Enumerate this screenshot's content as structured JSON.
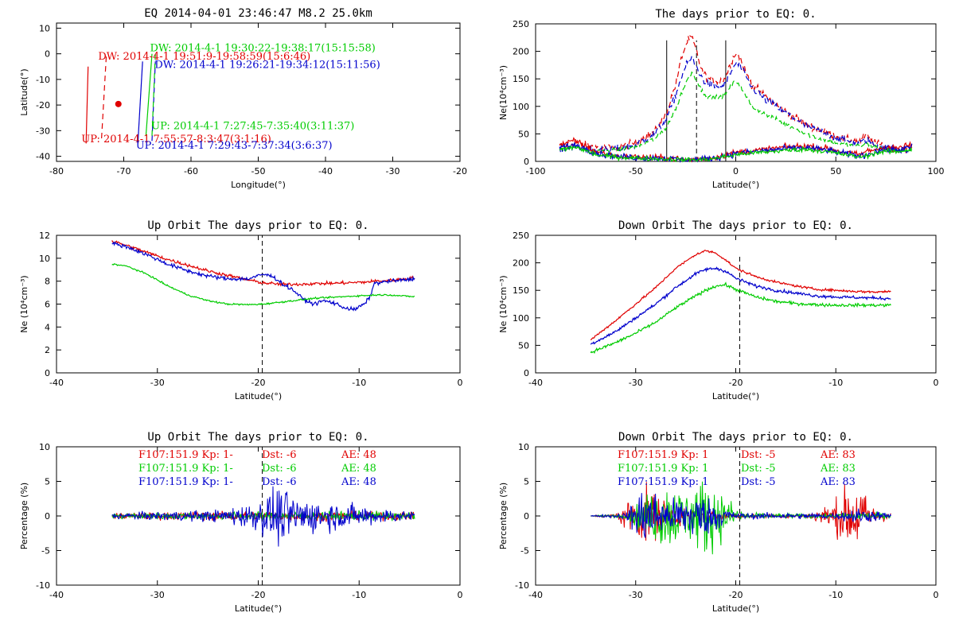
{
  "colors": {
    "red": "#e00000",
    "green": "#00cc00",
    "blue": "#0000cc",
    "black": "#000000"
  },
  "chart_data": [
    {
      "id": "map",
      "type": "line",
      "title": "EQ 2014-04-01 23:46:47 M8.2 25.0km",
      "xlabel": "Longitude(°)",
      "ylabel": "Latitude(°)",
      "xlim": [
        -80,
        -20
      ],
      "ylim": [
        -42,
        12
      ],
      "xticks": [
        -80,
        -70,
        -60,
        -50,
        -40,
        -30,
        -20
      ],
      "yticks": [
        -40,
        -30,
        -20,
        -10,
        0,
        10
      ],
      "epicenter": {
        "x": -70.8,
        "y": -19.6,
        "color": "red"
      },
      "tracks": [
        {
          "color": "red",
          "dash": false,
          "x": [
            -75.6,
            -75.3
          ],
          "y": [
            -35,
            -5
          ]
        },
        {
          "color": "red",
          "dash": true,
          "x": [
            -73.3,
            -72.6
          ],
          "y": [
            -33,
            -1
          ]
        },
        {
          "color": "blue",
          "dash": false,
          "x": [
            -67.9,
            -67.2
          ],
          "y": [
            -35,
            -3
          ]
        },
        {
          "color": "green",
          "dash": false,
          "x": [
            -66.7,
            -65.8
          ],
          "y": [
            -32,
            0
          ]
        },
        {
          "color": "blue",
          "dash": true,
          "x": [
            -65.8,
            -65.3
          ],
          "y": [
            -34,
            -3
          ]
        },
        {
          "color": "green",
          "dash": true,
          "x": [
            -65.8,
            -65.3
          ],
          "y": [
            -32,
            0
          ]
        }
      ],
      "annotations": [
        {
          "text": "DW: 2014-4-1 19:30:22-19:38:17(15:15:58)",
          "color": "green",
          "x": -66.1,
          "y": 1.0
        },
        {
          "text": "DW: 2014-4-1 19:51:9-19:58:59(15:6:46)",
          "color": "red",
          "x": -73.8,
          "y": -2.2
        },
        {
          "text": "DW: 2014-4-1 19:26:21-19:34:12(15:11:56)",
          "color": "blue",
          "x": -65.4,
          "y": -5.6
        },
        {
          "text": "UP: 2014-4-1 7:27:45-7:35:40(3:11:37)",
          "color": "green",
          "x": -65.9,
          "y": -29.5
        },
        {
          "text": "UP: 2014-4-1 7:55:57-8:3:47(3:1:16)",
          "color": "red",
          "x": -76.3,
          "y": -34.6
        },
        {
          "text": "UP: 2014-4-1 7:29:43-7:37:34(3:6:37)",
          "color": "blue",
          "x": -68.2,
          "y": -37.0
        }
      ]
    },
    {
      "id": "ne-full",
      "type": "line",
      "title": "The days prior to EQ:   0.",
      "xlabel": "Latitude(°)",
      "ylabel": "Ne(10⁴cm⁻³)",
      "xlim": [
        -100,
        100
      ],
      "ylim": [
        0,
        250
      ],
      "xticks": [
        -100,
        -50,
        0,
        50,
        100
      ],
      "yticks": [
        0,
        50,
        100,
        150,
        200,
        250
      ],
      "vlines": [
        {
          "x": -34.5,
          "dash": false,
          "y2": 220
        },
        {
          "x": -19.6,
          "dash": true,
          "y2": 220
        },
        {
          "x": -5,
          "dash": false,
          "y2": 220
        }
      ],
      "x": [
        -88,
        -80,
        -70,
        -60,
        -50,
        -40,
        -35,
        -30,
        -27,
        -24,
        -22,
        -20,
        -17,
        -14,
        -11,
        -8,
        -5,
        -3,
        0,
        2,
        4,
        8,
        15,
        25,
        35,
        45,
        55,
        62,
        65,
        70,
        75,
        80,
        88
      ],
      "series": [
        {
          "color": "red",
          "dash": true,
          "noise": 5,
          "values": [
            28,
            34,
            25,
            24,
            34,
            56,
            85,
            140,
            190,
            220,
            225,
            205,
            165,
            150,
            148,
            146,
            152,
            175,
            198,
            190,
            170,
            140,
            118,
            90,
            68,
            52,
            40,
            36,
            48,
            32,
            28,
            22,
            25
          ]
        },
        {
          "color": "blue",
          "dash": true,
          "noise": 5,
          "values": [
            22,
            26,
            20,
            22,
            30,
            52,
            75,
            120,
            155,
            180,
            188,
            175,
            152,
            140,
            138,
            134,
            140,
            158,
            178,
            175,
            160,
            135,
            112,
            88,
            65,
            50,
            38,
            32,
            40,
            28,
            25,
            20,
            22
          ]
        },
        {
          "color": "green",
          "dash": true,
          "noise": 3,
          "values": [
            20,
            26,
            18,
            20,
            26,
            42,
            60,
            95,
            125,
            150,
            162,
            152,
            128,
            118,
            116,
            116,
            122,
            135,
            146,
            140,
            125,
            100,
            85,
            68,
            50,
            38,
            30,
            28,
            32,
            26,
            22,
            20,
            22
          ]
        },
        {
          "color": "red",
          "dash": false,
          "noise": 4,
          "values": [
            30,
            38,
            18,
            10,
            8,
            7,
            6,
            5,
            4,
            3,
            3,
            4,
            5,
            6,
            7,
            9,
            12,
            14,
            16,
            17,
            18,
            19,
            22,
            26,
            28,
            24,
            16,
            12,
            18,
            22,
            26,
            24,
            30
          ]
        },
        {
          "color": "blue",
          "dash": false,
          "noise": 4,
          "values": [
            25,
            30,
            15,
            9,
            7,
            6,
            5,
            4,
            3,
            3,
            3,
            3,
            4,
            5,
            6,
            8,
            10,
            12,
            14,
            15,
            16,
            17,
            20,
            23,
            25,
            21,
            14,
            10,
            12,
            18,
            22,
            20,
            26
          ]
        },
        {
          "color": "green",
          "dash": false,
          "noise": 3,
          "values": [
            22,
            26,
            12,
            8,
            6,
            5,
            4,
            4,
            3,
            3,
            3,
            3,
            3,
            4,
            5,
            7,
            9,
            10,
            12,
            13,
            14,
            15,
            17,
            20,
            22,
            18,
            12,
            8,
            10,
            15,
            18,
            17,
            22
          ]
        }
      ]
    },
    {
      "id": "up-orbit",
      "type": "line",
      "title": "Up Orbit The days prior to EQ:   0.",
      "xlabel": "Latitude(°)",
      "ylabel": "Ne (10⁴cm⁻³)",
      "xlim": [
        -40,
        0
      ],
      "ylim": [
        0,
        12
      ],
      "xticks": [
        -40,
        -30,
        -20,
        -10,
        0
      ],
      "yticks": [
        0,
        2,
        4,
        6,
        8,
        10,
        12
      ],
      "vlines": [
        {
          "x": -19.6,
          "dash": true,
          "y2": 12
        }
      ],
      "x": [
        -34.5,
        -33,
        -31,
        -29,
        -27,
        -25,
        -23,
        -21,
        -19.5,
        -18.5,
        -17.5,
        -16.5,
        -15.5,
        -14.5,
        -13.5,
        -12.5,
        -11.5,
        -10.5,
        -9.5,
        -9,
        -8.5,
        -7,
        -5.5,
        -4.5
      ],
      "series": [
        {
          "color": "red",
          "noise": 0.1,
          "values": [
            11.5,
            11.1,
            10.5,
            9.9,
            9.4,
            8.9,
            8.5,
            8.1,
            7.85,
            7.78,
            7.72,
            7.72,
            7.75,
            7.78,
            7.8,
            7.82,
            7.85,
            7.88,
            7.92,
            7.95,
            8.0,
            8.05,
            8.2,
            8.3
          ]
        },
        {
          "color": "blue",
          "noise": 0.12,
          "values": [
            11.3,
            11.0,
            10.3,
            9.5,
            8.9,
            8.45,
            8.2,
            8.2,
            8.6,
            8.4,
            7.7,
            7.2,
            6.4,
            6.0,
            6.3,
            6.1,
            5.7,
            5.5,
            6.0,
            6.5,
            7.8,
            8.0,
            8.1,
            8.2
          ]
        },
        {
          "color": "green",
          "noise": 0.05,
          "values": [
            9.5,
            9.3,
            8.6,
            7.6,
            6.8,
            6.3,
            6.0,
            5.95,
            6.0,
            6.1,
            6.2,
            6.3,
            6.4,
            6.5,
            6.55,
            6.6,
            6.65,
            6.7,
            6.75,
            6.75,
            6.8,
            6.8,
            6.7,
            6.65
          ]
        }
      ]
    },
    {
      "id": "down-orbit",
      "type": "line",
      "title": "Down Orbit The days prior to EQ:   0.",
      "xlabel": "Latitude(°)",
      "ylabel": "Ne (10⁴cm⁻³)",
      "xlim": [
        -40,
        0
      ],
      "ylim": [
        0,
        250
      ],
      "xticks": [
        -40,
        -30,
        -20,
        -10,
        0
      ],
      "yticks": [
        0,
        50,
        100,
        150,
        200,
        250
      ],
      "vlines": [
        {
          "x": -19.6,
          "dash": true,
          "y2": 215
        }
      ],
      "x": [
        -34.5,
        -32,
        -30,
        -28,
        -26,
        -24,
        -23,
        -22,
        -21,
        -20,
        -18,
        -16,
        -14,
        -12,
        -10,
        -8,
        -6,
        -4.5
      ],
      "series": [
        {
          "color": "red",
          "noise": 1.5,
          "values": [
            60,
            95,
            125,
            155,
            190,
            215,
            222,
            218,
            205,
            190,
            175,
            165,
            158,
            152,
            150,
            148,
            147,
            148
          ]
        },
        {
          "color": "blue",
          "noise": 2,
          "values": [
            52,
            75,
            100,
            125,
            155,
            180,
            188,
            190,
            185,
            172,
            158,
            150,
            145,
            140,
            138,
            137,
            136,
            135
          ]
        },
        {
          "color": "green",
          "noise": 2,
          "values": [
            37,
            55,
            72,
            92,
            118,
            140,
            150,
            158,
            160,
            152,
            138,
            130,
            126,
            124,
            123,
            123,
            123,
            123
          ]
        }
      ]
    },
    {
      "id": "up-percentage",
      "type": "line",
      "title": "Up Orbit The days prior to EQ:   0.",
      "xlabel": "Latitude(°)",
      "ylabel": "Percentage (%)",
      "xlim": [
        -40,
        0
      ],
      "ylim": [
        -10,
        10
      ],
      "xticks": [
        -40,
        -30,
        -20,
        -10,
        0
      ],
      "yticks": [
        -10,
        -5,
        0,
        5,
        10
      ],
      "vlines": [
        {
          "x": -19.6,
          "dash": true,
          "y2": 10
        }
      ],
      "noise_range": [
        -34.5,
        -4.5
      ],
      "series": [
        {
          "color": "red",
          "amps": [
            [
              -34.5,
              0.3
            ],
            [
              -20,
              0.5
            ],
            [
              -4.5,
              0.4
            ]
          ]
        },
        {
          "color": "green",
          "amps": [
            [
              -34.5,
              0.3
            ],
            [
              -20,
              0.4
            ],
            [
              -4.5,
              0.5
            ]
          ]
        },
        {
          "color": "blue",
          "amps": [
            [
              -34.5,
              0.3
            ],
            [
              -24,
              0.6
            ],
            [
              -20,
              1.5
            ],
            [
              -18,
              3.0
            ],
            [
              -16.5,
              2.0
            ],
            [
              -13,
              1.5
            ],
            [
              -11,
              1.2
            ],
            [
              -8,
              0.8
            ],
            [
              -4.5,
              0.4
            ]
          ]
        }
      ],
      "legend": [
        {
          "color": "red",
          "f107": "F107:151.9 Kp: 1-",
          "dst": "Dst: -6",
          "ae": "AE: 48"
        },
        {
          "color": "green",
          "f107": "F107:151.9 Kp: 1-",
          "dst": "Dst: -6",
          "ae": "AE: 48"
        },
        {
          "color": "blue",
          "f107": "F107:151.9 Kp: 1-",
          "dst": "Dst: -6",
          "ae": "AE: 48"
        }
      ]
    },
    {
      "id": "down-percentage",
      "type": "line",
      "title": "Down Orbit The days prior to EQ:   0.",
      "xlabel": "Latitude(°)",
      "ylabel": "Percentage (%)",
      "xlim": [
        -40,
        0
      ],
      "ylim": [
        -10,
        10
      ],
      "xticks": [
        -40,
        -30,
        -20,
        -10,
        0
      ],
      "yticks": [
        -10,
        -5,
        0,
        5,
        10
      ],
      "vlines": [
        {
          "x": -19.6,
          "dash": true,
          "y2": 10
        }
      ],
      "noise_range": [
        -34.5,
        -4.5
      ],
      "series": [
        {
          "color": "red",
          "amps": [
            [
              -34.5,
              0.05
            ],
            [
              -32,
              0.2
            ],
            [
              -31,
              1.5
            ],
            [
              -29,
              3.0
            ],
            [
              -27,
              1.5
            ],
            [
              -25,
              0.8
            ],
            [
              -22,
              0.4
            ],
            [
              -19,
              0.2
            ],
            [
              -13,
              0.2
            ],
            [
              -10.5,
              1.2
            ],
            [
              -8,
              4.0
            ],
            [
              -6.5,
              1.0
            ],
            [
              -4.5,
              0.3
            ]
          ]
        },
        {
          "color": "green",
          "amps": [
            [
              -34.5,
              0.05
            ],
            [
              -31,
              0.2
            ],
            [
              -29,
              2.0
            ],
            [
              -27,
              3.5
            ],
            [
              -25,
              2.5
            ],
            [
              -23,
              4.0
            ],
            [
              -21,
              2.0
            ],
            [
              -19,
              0.3
            ],
            [
              -10,
              0.2
            ],
            [
              -8,
              0.5
            ],
            [
              -4.5,
              0.2
            ]
          ]
        },
        {
          "color": "blue",
          "amps": [
            [
              -34.5,
              0.05
            ],
            [
              -31,
              0.3
            ],
            [
              -29,
              3.5
            ],
            [
              -27,
              1.5
            ],
            [
              -24,
              2.5
            ],
            [
              -22,
              1.5
            ],
            [
              -20,
              0.3
            ],
            [
              -10,
              0.3
            ],
            [
              -8,
              0.8
            ],
            [
              -4.5,
              0.3
            ]
          ]
        }
      ],
      "legend": [
        {
          "color": "red",
          "f107": "F107:151.9 Kp: 1",
          "dst": "Dst: -5",
          "ae": "AE: 83"
        },
        {
          "color": "green",
          "f107": "F107:151.9 Kp: 1",
          "dst": "Dst: -5",
          "ae": "AE: 83"
        },
        {
          "color": "blue",
          "f107": "F107:151.9 Kp: 1",
          "dst": "Dst: -5",
          "ae": "AE: 83"
        }
      ]
    }
  ]
}
